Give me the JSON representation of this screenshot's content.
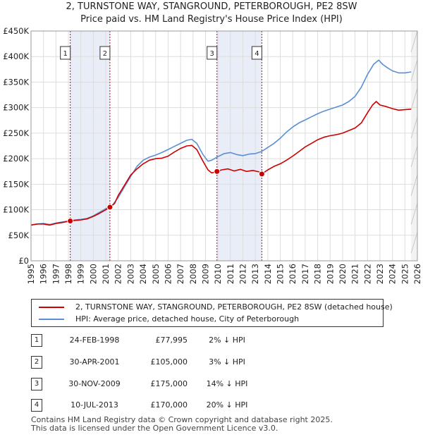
{
  "title_line1": "2, TURNSTONE WAY, STANGROUND, PETERBOROUGH, PE2 8SW",
  "title_line2": "Price paid vs. HM Land Registry's House Price Index (HPI)",
  "colors": {
    "property": "#cc0000",
    "hpi": "#5b8fd4",
    "shade": "#e8edf8",
    "sale_vline": "#cc0000",
    "grid": "#dddddd"
  },
  "chart_data": {
    "type": "line",
    "x_range": [
      1995,
      2026
    ],
    "ylim": [
      0,
      450000
    ],
    "y_ticks": [
      0,
      50000,
      100000,
      150000,
      200000,
      250000,
      300000,
      350000,
      400000,
      450000
    ],
    "y_tick_labels": [
      "£0",
      "£50K",
      "£100K",
      "£150K",
      "£200K",
      "£250K",
      "£300K",
      "£350K",
      "£400K",
      "£450K"
    ],
    "x_ticks": [
      1995,
      1996,
      1997,
      1998,
      1999,
      2000,
      2001,
      2002,
      2003,
      2004,
      2005,
      2006,
      2007,
      2008,
      2009,
      2010,
      2011,
      2012,
      2013,
      2014,
      2015,
      2016,
      2017,
      2018,
      2019,
      2020,
      2021,
      2022,
      2023,
      2024,
      2025,
      2026
    ],
    "x_tick_labels": [
      "1995",
      "1996",
      "1997",
      "1998",
      "1999",
      "2000",
      "2001",
      "2002",
      "2003",
      "2004",
      "2005",
      "2006",
      "2007",
      "2008",
      "2009",
      "2010",
      "2011",
      "2012",
      "2013",
      "2014",
      "2015",
      "2016",
      "2017",
      "2018",
      "2019",
      "2020",
      "2021",
      "2022",
      "2023",
      "2024",
      "2025",
      "2026"
    ],
    "shaded_periods": [
      [
        1998.15,
        2001.33
      ],
      [
        2009.92,
        2013.52
      ]
    ],
    "projection_start": 2025.5,
    "series": [
      {
        "name": "2, TURNSTONE WAY, STANGROUND, PETERBOROUGH, PE2 8SW (detached house)",
        "color": "#cc0000",
        "x": [
          1995.0,
          1995.5,
          1996.0,
          1996.5,
          1997.0,
          1997.5,
          1998.15,
          1998.5,
          1999.0,
          1999.5,
          2000.0,
          2000.5,
          2001.0,
          2001.33,
          2001.7,
          2002.0,
          2002.5,
          2003.0,
          2003.5,
          2004.0,
          2004.5,
          2005.0,
          2005.5,
          2006.0,
          2006.5,
          2007.0,
          2007.5,
          2007.9,
          2008.3,
          2008.8,
          2009.2,
          2009.5,
          2009.92,
          2010.3,
          2010.8,
          2011.3,
          2011.8,
          2012.3,
          2012.8,
          2013.3,
          2013.52,
          2014.0,
          2014.5,
          2015.0,
          2015.5,
          2016.0,
          2016.5,
          2017.0,
          2017.5,
          2018.0,
          2018.5,
          2019.0,
          2019.5,
          2020.0,
          2020.5,
          2021.0,
          2021.5,
          2022.0,
          2022.4,
          2022.7,
          2023.0,
          2023.5,
          2024.0,
          2024.5,
          2025.0,
          2025.5
        ],
        "y": [
          70000,
          72000,
          72000,
          70000,
          73000,
          75000,
          77995,
          79000,
          80000,
          82000,
          87000,
          93000,
          100000,
          105000,
          112000,
          128000,
          148000,
          168000,
          180000,
          190000,
          197000,
          200000,
          201000,
          205000,
          213000,
          220000,
          225000,
          226000,
          218000,
          195000,
          178000,
          172000,
          175000,
          178000,
          180000,
          176000,
          179000,
          175000,
          177000,
          174000,
          170000,
          178000,
          185000,
          190000,
          197000,
          205000,
          214000,
          223000,
          230000,
          237000,
          242000,
          245000,
          247000,
          250000,
          255000,
          260000,
          270000,
          290000,
          305000,
          312000,
          305000,
          302000,
          298000,
          295000,
          296000,
          297000
        ]
      },
      {
        "name": "HPI: Average price, detached house, City of Peterborough",
        "color": "#5b8fd4",
        "x": [
          1995.0,
          1995.5,
          1996.0,
          1996.5,
          1997.0,
          1997.5,
          1998.0,
          1998.5,
          1999.0,
          1999.5,
          2000.0,
          2000.5,
          2001.0,
          2001.5,
          2002.0,
          2002.5,
          2003.0,
          2003.5,
          2004.0,
          2004.5,
          2005.0,
          2005.5,
          2006.0,
          2006.5,
          2007.0,
          2007.5,
          2007.9,
          2008.3,
          2008.8,
          2009.2,
          2009.5,
          2010.0,
          2010.5,
          2011.0,
          2011.5,
          2012.0,
          2012.5,
          2013.0,
          2013.5,
          2014.0,
          2014.5,
          2015.0,
          2015.5,
          2016.0,
          2016.5,
          2017.0,
          2017.5,
          2018.0,
          2018.5,
          2019.0,
          2019.5,
          2020.0,
          2020.5,
          2021.0,
          2021.5,
          2022.0,
          2022.5,
          2022.9,
          2023.2,
          2023.6,
          2024.0,
          2024.5,
          2025.0,
          2025.5
        ],
        "y": [
          70000,
          72000,
          73000,
          71000,
          74000,
          76000,
          78000,
          80000,
          81000,
          83000,
          88000,
          95000,
          102000,
          108000,
          124000,
          145000,
          165000,
          185000,
          197000,
          203000,
          207000,
          212000,
          218000,
          224000,
          230000,
          236000,
          238000,
          230000,
          208000,
          195000,
          197000,
          204000,
          210000,
          212000,
          208000,
          206000,
          209000,
          210000,
          214000,
          222000,
          230000,
          240000,
          252000,
          262000,
          270000,
          276000,
          282000,
          288000,
          293000,
          297000,
          301000,
          305000,
          312000,
          322000,
          340000,
          365000,
          385000,
          393000,
          385000,
          378000,
          372000,
          368000,
          368000,
          370000
        ]
      }
    ],
    "sales": [
      {
        "num": "1",
        "x": 1998.15,
        "price": 77995
      },
      {
        "num": "2",
        "x": 2001.33,
        "price": 105000
      },
      {
        "num": "3",
        "x": 2009.92,
        "price": 175000
      },
      {
        "num": "4",
        "x": 2013.52,
        "price": 170000
      }
    ]
  },
  "legend": {
    "property_label": "2, TURNSTONE WAY, STANGROUND, PETERBOROUGH, PE2 8SW (detached house)",
    "hpi_label": "HPI: Average price, detached house, City of Peterborough"
  },
  "sales_table": [
    {
      "num": "1",
      "date": "24-FEB-1998",
      "price": "£77,995",
      "hpi": "2% ↓ HPI"
    },
    {
      "num": "2",
      "date": "30-APR-2001",
      "price": "£105,000",
      "hpi": "3% ↓ HPI"
    },
    {
      "num": "3",
      "date": "30-NOV-2009",
      "price": "£175,000",
      "hpi": "14% ↓ HPI"
    },
    {
      "num": "4",
      "date": "10-JUL-2013",
      "price": "£170,000",
      "hpi": "20% ↓ HPI"
    }
  ],
  "footer_line1": "Contains HM Land Registry data © Crown copyright and database right 2025.",
  "footer_line2": "This data is licensed under the Open Government Licence v3.0."
}
